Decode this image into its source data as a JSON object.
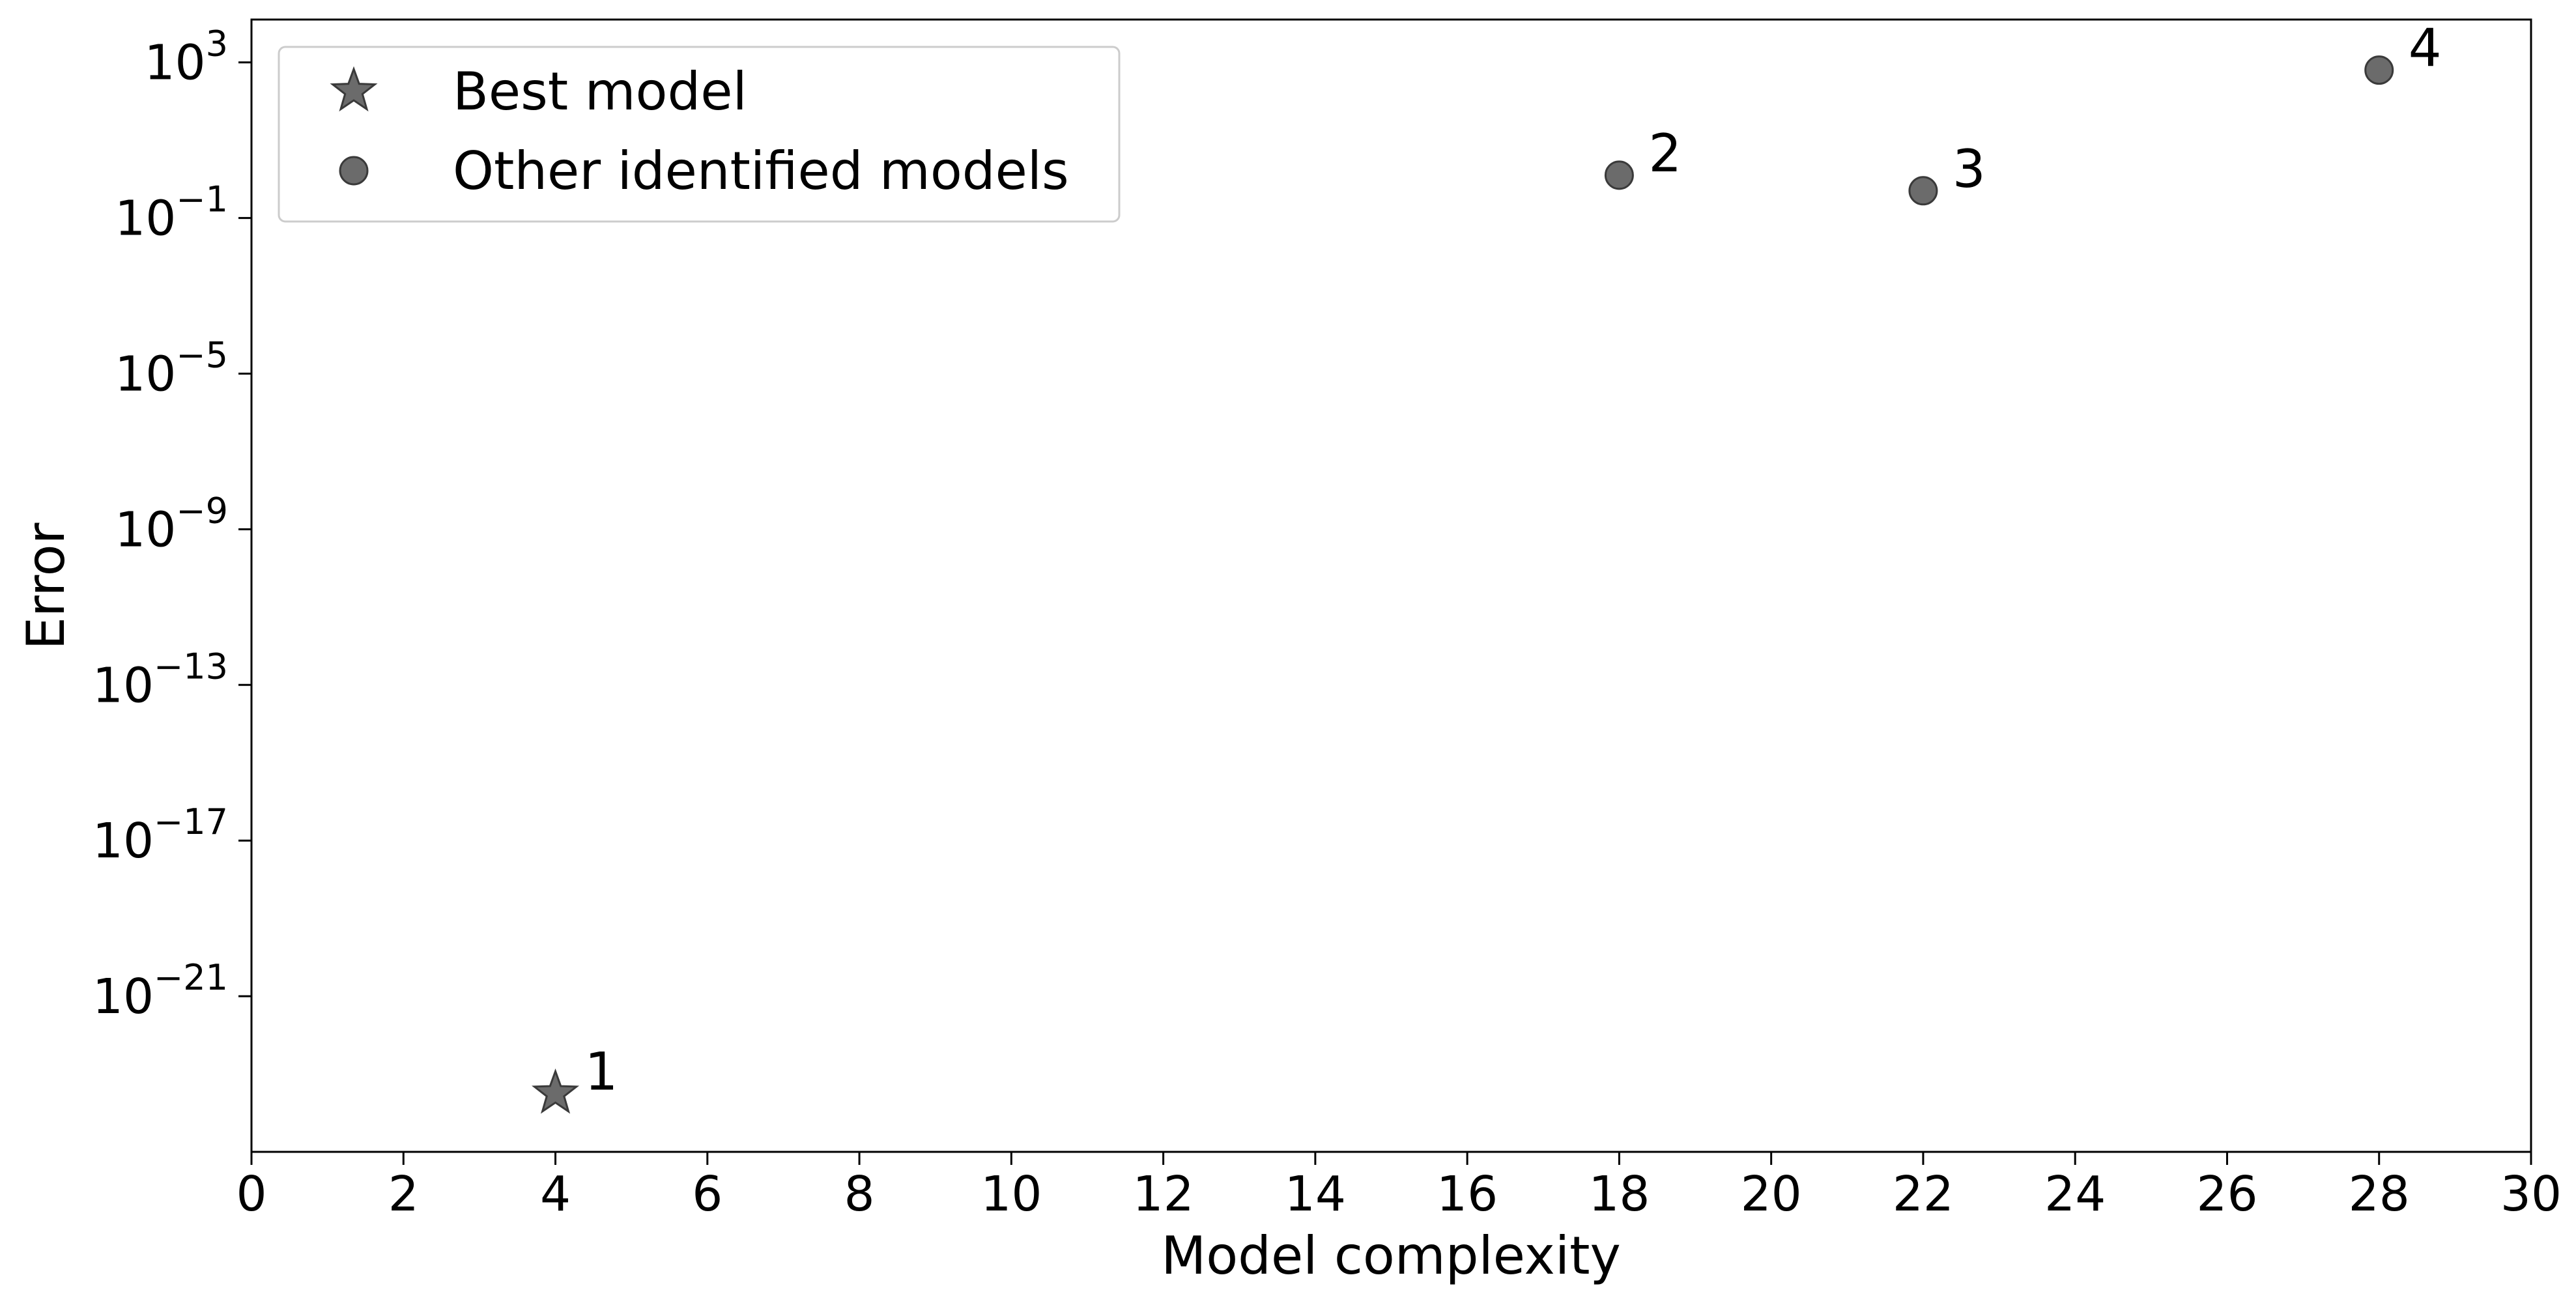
{
  "chart_data": {
    "type": "scatter",
    "xlabel": "Model complexity",
    "ylabel": "Error",
    "xlim": [
      0,
      30
    ],
    "y_scale": "log",
    "ylim_log10": [
      -25,
      4.1
    ],
    "x_ticks": [
      0,
      2,
      4,
      6,
      8,
      10,
      12,
      14,
      16,
      18,
      20,
      22,
      24,
      26,
      28,
      30
    ],
    "y_tick_exponents": [
      3,
      -1,
      -5,
      -9,
      -13,
      -17,
      -21
    ],
    "grid": false,
    "legend_position": "top-left",
    "marker_color": "#6b6b6b",
    "series": [
      {
        "name": "Best model",
        "marker": "star",
        "points": [
          {
            "label": "1",
            "x": 4,
            "log10_y": -23.5
          }
        ]
      },
      {
        "name": "Other identified models",
        "marker": "circle",
        "points": [
          {
            "label": "2",
            "x": 18,
            "log10_y": 0.1
          },
          {
            "label": "3",
            "x": 22,
            "log10_y": -0.3
          },
          {
            "label": "4",
            "x": 28,
            "log10_y": 2.8
          }
        ]
      }
    ]
  }
}
